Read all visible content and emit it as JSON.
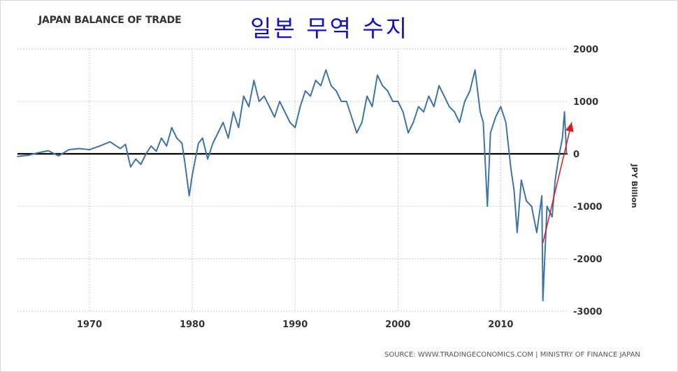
{
  "title": "JAPAN BALANCE OF TRADE",
  "overlay_title": "일본 무역 수지",
  "source": "SOURCE: WWW.TRADINGECONOMICS.COM | MINISTRY OF FINANCE JAPAN",
  "colors": {
    "series": "#3e74a6",
    "grid": "#c9c9c9",
    "zero_line": "#000000",
    "annotation_arrow": "#e01818",
    "overlay_title": "#1010d0"
  },
  "chart_data": {
    "type": "line",
    "title": "JAPAN BALANCE OF TRADE",
    "xlabel": "",
    "ylabel": "JPY Billion",
    "xlim": [
      1963,
      2016.5
    ],
    "ylim": [
      -3000,
      2000
    ],
    "x_ticks": [
      1970,
      1980,
      1990,
      2000,
      2010
    ],
    "y_ticks": [
      2000,
      1000,
      0,
      -1000,
      -2000,
      -3000
    ],
    "y_axis_position": "right",
    "grid": true,
    "legend": "none",
    "series": [
      {
        "x": [
          1963,
          1964,
          1965,
          1966,
          1967,
          1968,
          1969,
          1970,
          1971,
          1972,
          1973,
          1973.5,
          1974,
          1974.5,
          1975,
          1975.5,
          1976,
          1976.5,
          1977,
          1977.5,
          1978,
          1978.5,
          1979,
          1979.3,
          1979.7,
          1980,
          1980.3,
          1980.6,
          1981,
          1981.5,
          1982,
          1982.5,
          1983,
          1983.5,
          1984,
          1984.5,
          1985,
          1985.5,
          1986,
          1986.5,
          1987,
          1987.5,
          1988,
          1988.5,
          1989,
          1989.5,
          1990,
          1990.5,
          1991,
          1991.5,
          1992,
          1992.5,
          1993,
          1993.5,
          1994,
          1994.5,
          1995,
          1995.5,
          1996,
          1996.5,
          1997,
          1997.5,
          1998,
          1998.5,
          1999,
          1999.5,
          2000,
          2000.5,
          2001,
          2001.5,
          2002,
          2002.5,
          2003,
          2003.5,
          2004,
          2004.5,
          2005,
          2005.5,
          2006,
          2006.5,
          2007,
          2007.5,
          2008,
          2008.3,
          2008.7,
          2009,
          2009.5,
          2010,
          2010.5,
          2011,
          2011.3,
          2011.6,
          2012,
          2012.5,
          2013,
          2013.5,
          2014,
          2014.1,
          2014.5,
          2015,
          2015.3,
          2015.6,
          2016,
          2016.2,
          2016.4
        ],
        "y": [
          -50,
          -30,
          20,
          60,
          -40,
          80,
          100,
          80,
          150,
          230,
          100,
          180,
          -250,
          -100,
          -200,
          0,
          150,
          50,
          300,
          150,
          500,
          300,
          200,
          -200,
          -800,
          -400,
          -100,
          200,
          300,
          -100,
          200,
          400,
          600,
          300,
          800,
          500,
          1100,
          900,
          1400,
          1000,
          1100,
          900,
          700,
          1000,
          800,
          600,
          500,
          900,
          1200,
          1100,
          1400,
          1300,
          1600,
          1300,
          1200,
          1000,
          1000,
          700,
          400,
          600,
          1100,
          900,
          1500,
          1300,
          1200,
          1000,
          1000,
          800,
          400,
          600,
          900,
          800,
          1100,
          900,
          1300,
          1100,
          900,
          800,
          600,
          1000,
          1200,
          1600,
          800,
          600,
          -1000,
          400,
          700,
          900,
          600,
          -300,
          -700,
          -1500,
          -500,
          -900,
          -1000,
          -1500,
          -800,
          -2800,
          -1000,
          -1200,
          -500,
          -100,
          300,
          800,
          0
        ]
      }
    ],
    "annotations": [
      {
        "type": "arrow",
        "color": "red",
        "from": [
          2014.1,
          -1700
        ],
        "to": [
          2016.9,
          600
        ]
      }
    ]
  }
}
